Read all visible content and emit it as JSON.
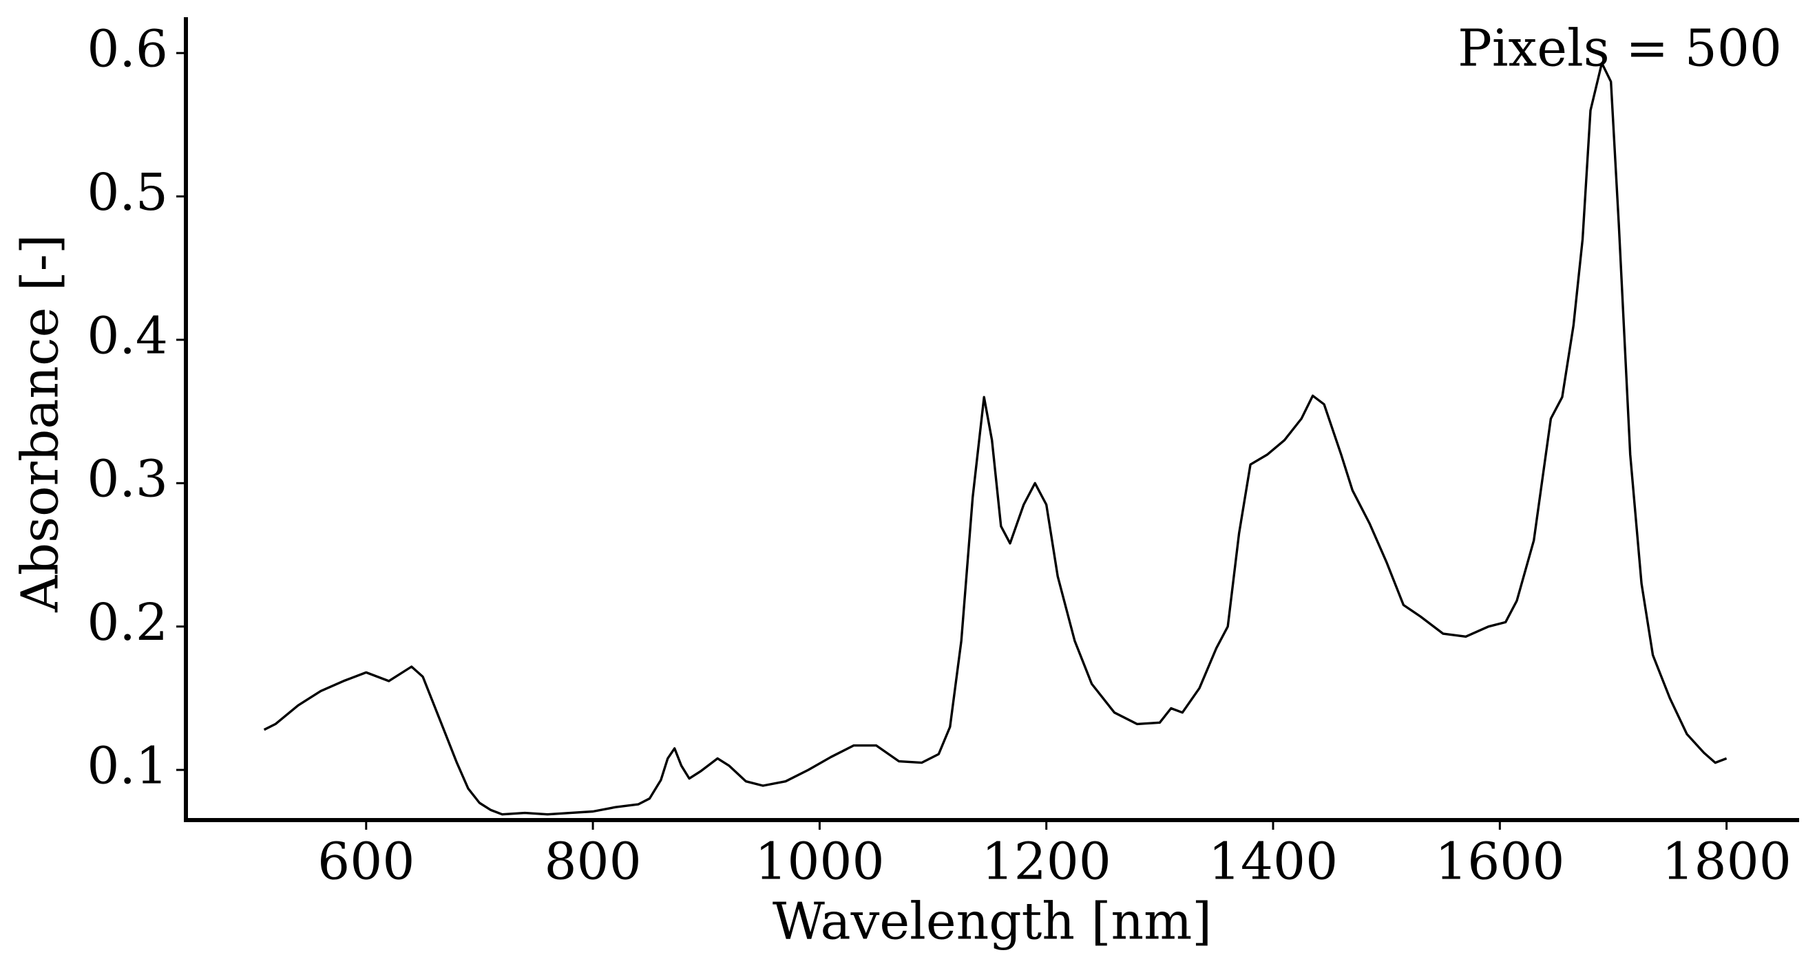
{
  "chart_data": {
    "type": "line",
    "xlabel": "Wavelength [nm]",
    "ylabel": "Absorbance [-]",
    "annotation": "Pixels = 500",
    "color": "#000000",
    "x": [
      510,
      520,
      540,
      560,
      580,
      600,
      620,
      640,
      650,
      660,
      670,
      680,
      690,
      700,
      710,
      720,
      740,
      760,
      780,
      800,
      820,
      840,
      850,
      860,
      866,
      872,
      878,
      885,
      895,
      910,
      920,
      935,
      950,
      970,
      990,
      1010,
      1030,
      1050,
      1070,
      1090,
      1105,
      1115,
      1125,
      1135,
      1145,
      1152,
      1160,
      1168,
      1180,
      1190,
      1200,
      1210,
      1225,
      1240,
      1260,
      1280,
      1300,
      1310,
      1320,
      1335,
      1350,
      1360,
      1370,
      1380,
      1395,
      1410,
      1425,
      1435,
      1445,
      1460,
      1470,
      1485,
      1500,
      1515,
      1530,
      1550,
      1570,
      1590,
      1605,
      1615,
      1630,
      1645,
      1655,
      1665,
      1673,
      1680,
      1690,
      1698,
      1705,
      1715,
      1725,
      1735,
      1750,
      1765,
      1780,
      1790,
      1800
    ],
    "values": [
      0.128,
      0.132,
      0.145,
      0.155,
      0.162,
      0.168,
      0.162,
      0.172,
      0.165,
      0.145,
      0.125,
      0.105,
      0.087,
      0.077,
      0.072,
      0.069,
      0.07,
      0.069,
      0.07,
      0.071,
      0.074,
      0.076,
      0.08,
      0.093,
      0.108,
      0.115,
      0.103,
      0.094,
      0.099,
      0.108,
      0.103,
      0.092,
      0.089,
      0.092,
      0.1,
      0.109,
      0.117,
      0.117,
      0.106,
      0.105,
      0.111,
      0.13,
      0.19,
      0.29,
      0.36,
      0.33,
      0.27,
      0.258,
      0.285,
      0.3,
      0.285,
      0.235,
      0.19,
      0.16,
      0.14,
      0.132,
      0.133,
      0.143,
      0.14,
      0.157,
      0.185,
      0.2,
      0.265,
      0.313,
      0.32,
      0.33,
      0.345,
      0.361,
      0.355,
      0.32,
      0.295,
      0.272,
      0.245,
      0.215,
      0.207,
      0.195,
      0.193,
      0.2,
      0.203,
      0.218,
      0.26,
      0.345,
      0.36,
      0.41,
      0.47,
      0.56,
      0.593,
      0.58,
      0.48,
      0.32,
      0.23,
      0.18,
      0.15,
      0.125,
      0.112,
      0.105,
      0.108
    ],
    "xlim": [
      441,
      1864
    ],
    "ylim": [
      0.065,
      0.625
    ],
    "xticks": [
      600,
      800,
      1000,
      1200,
      1400,
      1600,
      1800
    ],
    "yticks": [
      0.1,
      0.2,
      0.3,
      0.4,
      0.5,
      0.6
    ]
  }
}
